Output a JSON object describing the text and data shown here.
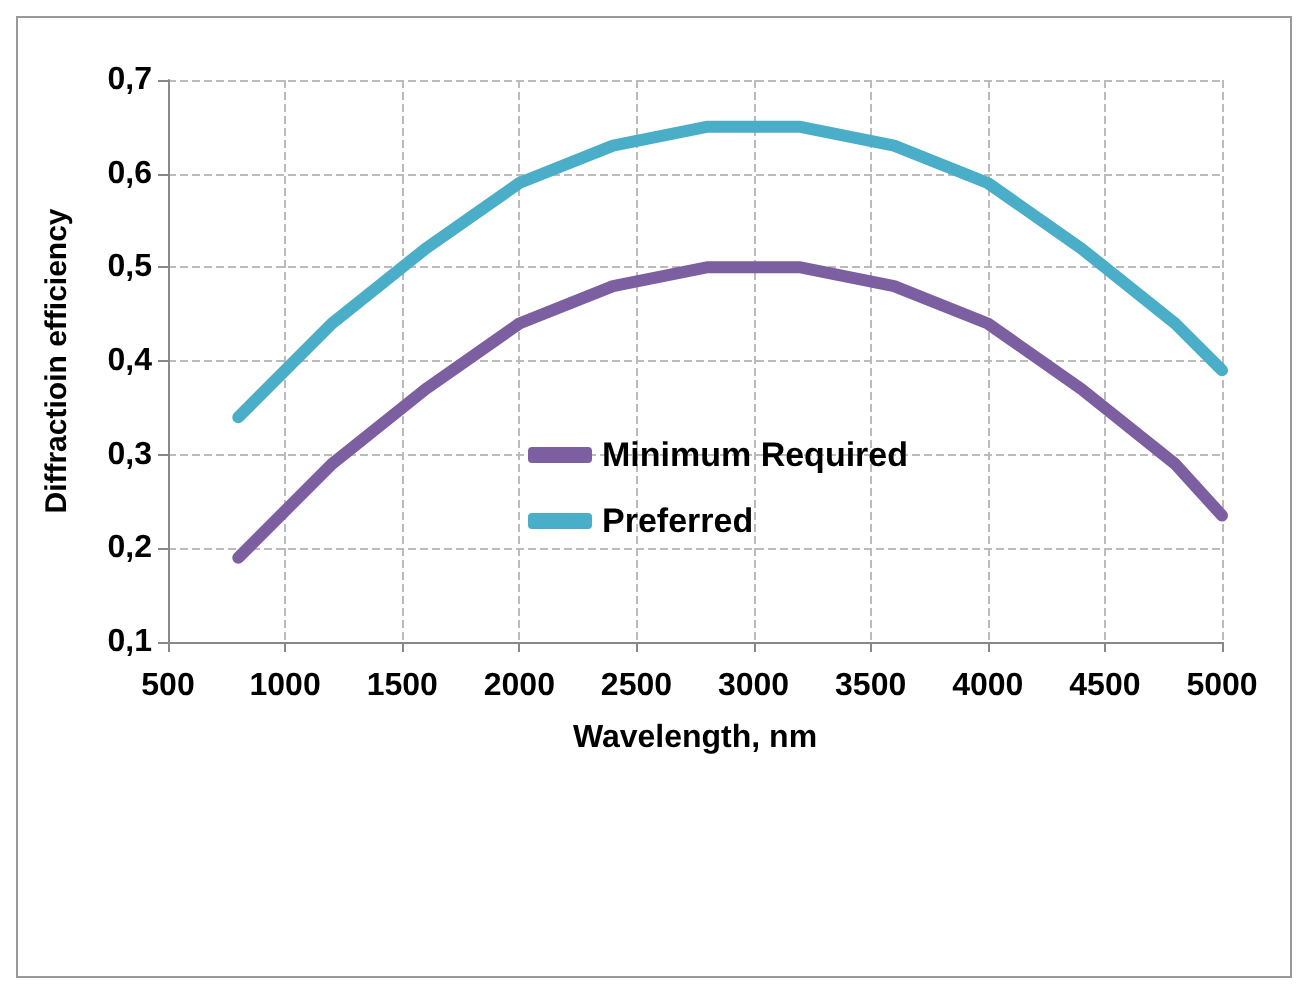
{
  "chart_data": {
    "type": "line",
    "xlabel": "Wavelength, nm",
    "ylabel": "Diffractioin efficiency",
    "x": [
      800,
      1200,
      1600,
      2000,
      2400,
      2800,
      3200,
      3600,
      4000,
      4400,
      4800,
      5000
    ],
    "series": [
      {
        "name": "Minimum Required",
        "color": "#7b5fa0",
        "values": [
          0.19,
          0.29,
          0.37,
          0.44,
          0.48,
          0.5,
          0.5,
          0.48,
          0.44,
          0.37,
          0.29,
          0.235
        ]
      },
      {
        "name": "Preferred",
        "color": "#4aaec8",
        "values": [
          0.34,
          0.44,
          0.52,
          0.59,
          0.63,
          0.65,
          0.65,
          0.63,
          0.59,
          0.52,
          0.44,
          0.39
        ]
      }
    ],
    "xlim": [
      500,
      5000
    ],
    "xticks": [
      500,
      1000,
      1500,
      2000,
      2500,
      3000,
      3500,
      4000,
      4500,
      5000
    ],
    "ylim": [
      0.1,
      0.7
    ],
    "yticks": [
      {
        "value": 0.1,
        "label": "0,1"
      },
      {
        "value": 0.2,
        "label": "0,2"
      },
      {
        "value": 0.3,
        "label": "0,3"
      },
      {
        "value": 0.4,
        "label": "0,4"
      },
      {
        "value": 0.5,
        "label": "0,5"
      },
      {
        "value": 0.6,
        "label": "0,6"
      },
      {
        "value": 0.7,
        "label": "0,7"
      }
    ],
    "grid": true,
    "legend": "center",
    "marker": "none",
    "line_style": "solid"
  }
}
